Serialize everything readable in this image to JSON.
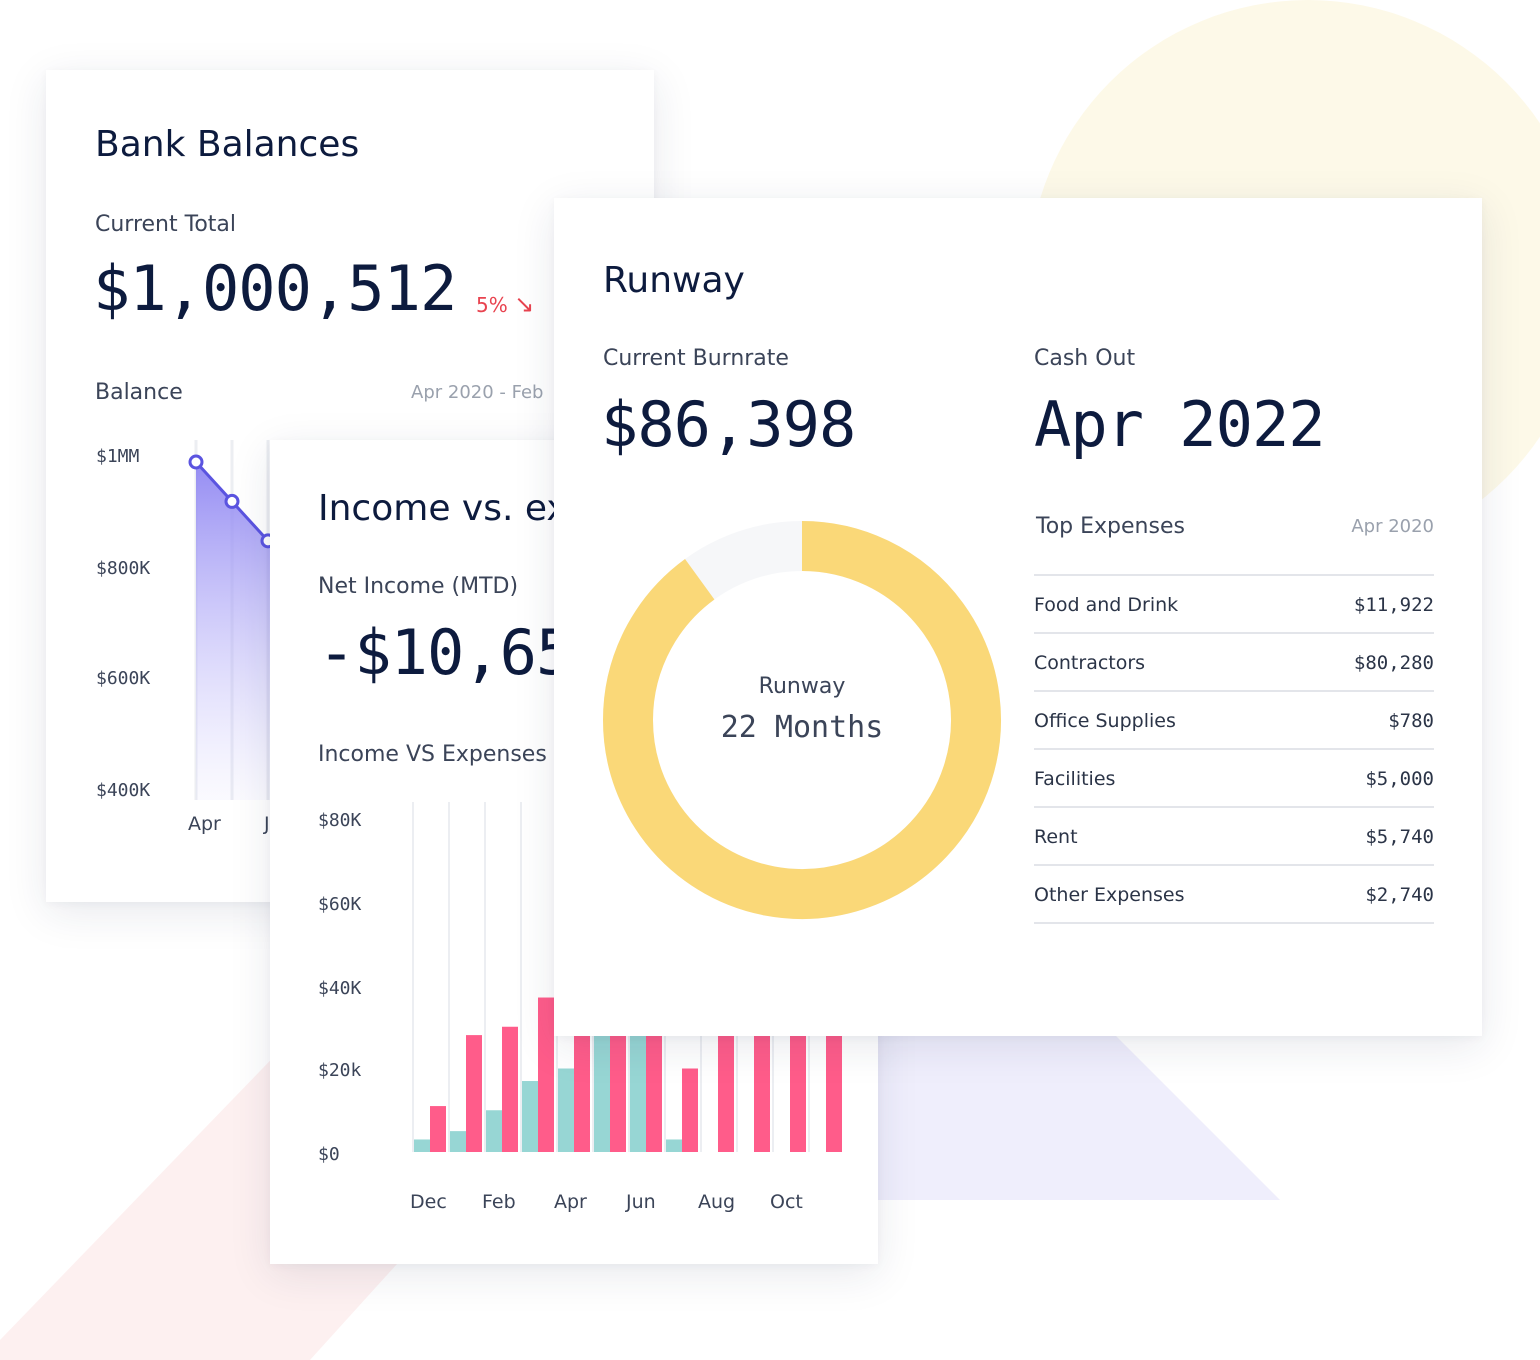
{
  "bank": {
    "title": "Bank Balances",
    "current_total_label": "Current Total",
    "current_total_value": "$1,000,512",
    "change_percent": "5%",
    "change_arrow": "↘",
    "balance_label": "Balance",
    "date_range": "Apr 2020 - Feb",
    "colors": {
      "line": "#5b54e0",
      "change": "#e8434f"
    }
  },
  "income": {
    "title": "Income vs. ex",
    "net_income_label": "Net Income (MTD)",
    "net_income_value": "-$10,65",
    "chart_label": "Income VS Expenses",
    "colors": {
      "income": "#97d6d4",
      "expense": "#ff5c8a"
    }
  },
  "runway": {
    "title": "Runway",
    "burnrate_label": "Current Burnrate",
    "burnrate_value": "$86,398",
    "cashout_label": "Cash Out",
    "cashout_value": "Apr 2022",
    "donut_label": "Runway",
    "donut_value": "22 Months",
    "donut_fraction": 0.9,
    "top_expenses_label": "Top Expenses",
    "top_expenses_period": "Apr 2020",
    "expenses": [
      {
        "name": "Food and Drink",
        "value": "$11,922"
      },
      {
        "name": "Contractors",
        "value": "$80,280"
      },
      {
        "name": "Office Supplies",
        "value": "$780"
      },
      {
        "name": "Facilities",
        "value": "$5,000"
      },
      {
        "name": "Rent",
        "value": "$5,740"
      },
      {
        "name": "Other Expenses",
        "value": "$2,740"
      }
    ],
    "colors": {
      "donut": "#fad878",
      "donut_track": "#f6f7f9"
    }
  },
  "chart_data": [
    {
      "type": "area",
      "title": "Balance",
      "y_ticks": [
        "$1MM",
        "$800K",
        "$600K",
        "$400K"
      ],
      "ylim": [
        400000,
        1000000
      ],
      "x_ticks": [
        "Apr",
        "J"
      ],
      "series": [
        {
          "values": [
            1000000,
            930000,
            860000
          ]
        }
      ]
    },
    {
      "type": "bar",
      "title": "Income VS Expenses",
      "y_ticks": [
        "$80K",
        "$60K",
        "$40K",
        "$20k",
        "$0"
      ],
      "ylim": [
        0,
        80000
      ],
      "x_ticks": [
        "Dec",
        "Feb",
        "Apr",
        "Jun",
        "Aug",
        "Oct"
      ],
      "series": [
        {
          "values": [
            3000,
            5000,
            10000,
            17000,
            20000,
            30000,
            28000,
            3000,
            0,
            0,
            0,
            0
          ]
        },
        {
          "values": [
            11000,
            28000,
            30000,
            37000,
            30000,
            30000,
            30000,
            20000,
            30000,
            30000,
            30000,
            30000
          ]
        }
      ]
    }
  ]
}
